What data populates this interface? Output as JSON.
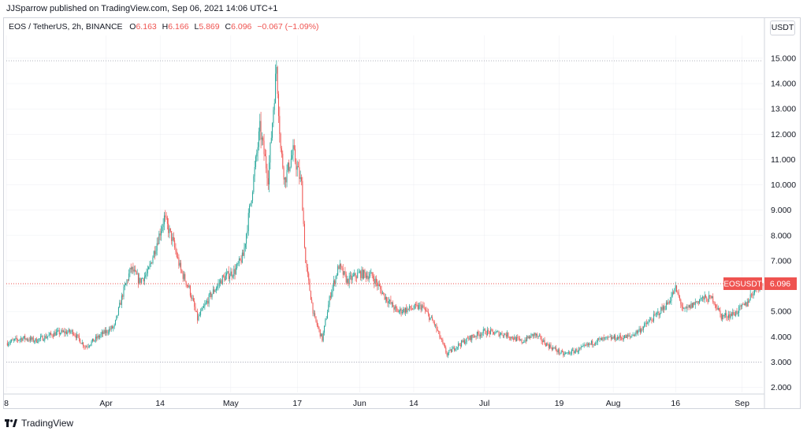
{
  "header": {
    "published_line": "JJSparrow published on TradingView.com, Sep 06, 2021 14:06 UTC+1"
  },
  "symbol_bar": {
    "title": "EOS / TetherUS, 2h, BINANCE",
    "o_label": "O",
    "o_value": "6.163",
    "h_label": "H",
    "h_value": "6.166",
    "l_label": "L",
    "l_value": "5.869",
    "c_label": "C",
    "c_value": "6.096",
    "change": "−0.067 (−1.09%)"
  },
  "currency_button": "USDT",
  "price_tag": {
    "symbol": "EOSUSDT",
    "value": "6.096"
  },
  "footer": {
    "brand": "TradingView"
  },
  "colors": {
    "up": "#26a69a",
    "down": "#ef5350",
    "grid": "#e0e3eb",
    "axis_text": "#131722",
    "price_line": "#ef5350"
  },
  "chart_data": {
    "type": "candlestick",
    "title": "EOS / TetherUS, 2h, BINANCE",
    "ylim": [
      1.8,
      15.9
    ],
    "y_ticks": [
      "15.000",
      "14.000",
      "13.000",
      "12.000",
      "11.000",
      "10.000",
      "9.000",
      "8.000",
      "7.000",
      "6.000",
      "5.000",
      "4.000",
      "3.000",
      "2.000"
    ],
    "y_tick_values": [
      15,
      14,
      13,
      12,
      11,
      10,
      9,
      8,
      7,
      6,
      5,
      4,
      3,
      2
    ],
    "x_range": [
      "2021-03-08",
      "2021-09-06"
    ],
    "x_ticks": [
      {
        "label": "8",
        "date": "2021-03-08"
      },
      {
        "label": "Apr",
        "date": "2021-04-01"
      },
      {
        "label": "14",
        "date": "2021-04-14"
      },
      {
        "label": "May",
        "date": "2021-05-01"
      },
      {
        "label": "17",
        "date": "2021-05-17"
      },
      {
        "label": "Jun",
        "date": "2021-06-01"
      },
      {
        "label": "14",
        "date": "2021-06-14"
      },
      {
        "label": "Jul",
        "date": "2021-07-01"
      },
      {
        "label": "19",
        "date": "2021-07-19"
      },
      {
        "label": "Aug",
        "date": "2021-08-01"
      },
      {
        "label": "16",
        "date": "2021-08-16"
      },
      {
        "label": "Sep",
        "date": "2021-09-01"
      }
    ],
    "reference_lines": [
      {
        "value": 14.9,
        "style": "dotted"
      },
      {
        "value": 3.0,
        "style": "dotted"
      }
    ],
    "last_price": 6.096,
    "price_path": [
      {
        "date": "2021-03-08",
        "price": 3.75
      },
      {
        "date": "2021-03-12",
        "price": 3.95
      },
      {
        "date": "2021-03-15",
        "price": 3.85
      },
      {
        "date": "2021-03-20",
        "price": 4.15
      },
      {
        "date": "2021-03-24",
        "price": 4.2
      },
      {
        "date": "2021-03-27",
        "price": 3.6
      },
      {
        "date": "2021-03-31",
        "price": 4.1
      },
      {
        "date": "2021-04-03",
        "price": 4.4
      },
      {
        "date": "2021-04-05",
        "price": 5.7
      },
      {
        "date": "2021-04-07",
        "price": 6.7
      },
      {
        "date": "2021-04-09",
        "price": 6.2
      },
      {
        "date": "2021-04-11",
        "price": 6.5
      },
      {
        "date": "2021-04-13",
        "price": 7.6
      },
      {
        "date": "2021-04-15",
        "price": 8.7
      },
      {
        "date": "2021-04-17",
        "price": 7.8
      },
      {
        "date": "2021-04-19",
        "price": 6.6
      },
      {
        "date": "2021-04-21",
        "price": 5.9
      },
      {
        "date": "2021-04-23",
        "price": 4.7
      },
      {
        "date": "2021-04-26",
        "price": 5.6
      },
      {
        "date": "2021-04-29",
        "price": 6.3
      },
      {
        "date": "2021-05-02",
        "price": 6.6
      },
      {
        "date": "2021-05-04",
        "price": 7.2
      },
      {
        "date": "2021-05-06",
        "price": 9.6
      },
      {
        "date": "2021-05-08",
        "price": 12.2
      },
      {
        "date": "2021-05-10",
        "price": 10.3
      },
      {
        "date": "2021-05-12",
        "price": 14.7
      },
      {
        "date": "2021-05-13",
        "price": 11.4
      },
      {
        "date": "2021-05-14",
        "price": 10.2
      },
      {
        "date": "2021-05-16",
        "price": 11.3
      },
      {
        "date": "2021-05-18",
        "price": 10.0
      },
      {
        "date": "2021-05-19",
        "price": 6.9
      },
      {
        "date": "2021-05-21",
        "price": 4.8
      },
      {
        "date": "2021-05-23",
        "price": 3.9
      },
      {
        "date": "2021-05-25",
        "price": 5.7
      },
      {
        "date": "2021-05-27",
        "price": 6.8
      },
      {
        "date": "2021-05-29",
        "price": 6.2
      },
      {
        "date": "2021-06-01",
        "price": 6.5
      },
      {
        "date": "2021-06-04",
        "price": 6.4
      },
      {
        "date": "2021-06-07",
        "price": 5.6
      },
      {
        "date": "2021-06-10",
        "price": 5.0
      },
      {
        "date": "2021-06-13",
        "price": 5.1
      },
      {
        "date": "2021-06-16",
        "price": 5.2
      },
      {
        "date": "2021-06-19",
        "price": 4.5
      },
      {
        "date": "2021-06-22",
        "price": 3.3
      },
      {
        "date": "2021-06-24",
        "price": 3.6
      },
      {
        "date": "2021-06-28",
        "price": 4.0
      },
      {
        "date": "2021-07-01",
        "price": 4.2
      },
      {
        "date": "2021-07-06",
        "price": 4.1
      },
      {
        "date": "2021-07-10",
        "price": 3.8
      },
      {
        "date": "2021-07-13",
        "price": 4.1
      },
      {
        "date": "2021-07-16",
        "price": 3.7
      },
      {
        "date": "2021-07-20",
        "price": 3.3
      },
      {
        "date": "2021-07-24",
        "price": 3.5
      },
      {
        "date": "2021-07-28",
        "price": 3.85
      },
      {
        "date": "2021-08-01",
        "price": 3.95
      },
      {
        "date": "2021-08-05",
        "price": 4.0
      },
      {
        "date": "2021-08-08",
        "price": 4.35
      },
      {
        "date": "2021-08-11",
        "price": 4.8
      },
      {
        "date": "2021-08-14",
        "price": 5.3
      },
      {
        "date": "2021-08-16",
        "price": 5.9
      },
      {
        "date": "2021-08-18",
        "price": 5.0
      },
      {
        "date": "2021-08-22",
        "price": 5.5
      },
      {
        "date": "2021-08-25",
        "price": 5.5
      },
      {
        "date": "2021-08-27",
        "price": 4.8
      },
      {
        "date": "2021-08-30",
        "price": 4.9
      },
      {
        "date": "2021-09-02",
        "price": 5.3
      },
      {
        "date": "2021-09-04",
        "price": 5.9
      },
      {
        "date": "2021-09-06",
        "price": 6.1
      }
    ]
  }
}
